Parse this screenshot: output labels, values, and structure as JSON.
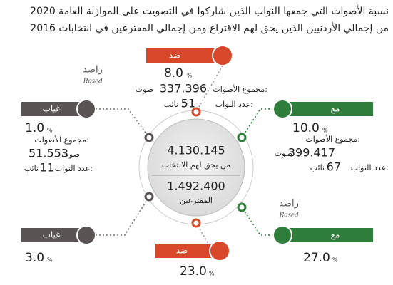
{
  "header": {
    "title_line1": "نسبة الأصوات التي جمعها النواب الذين شاركوا في التصويت على الموازنة العامة 2020",
    "title_line2": "من إجمالي الأردنيين الذين يحق لهم الاقتراع ومن إجمالي المقترعين في انتخابات 2016"
  },
  "logos": [
    {
      "name": "راصد",
      "latin": "Rased"
    },
    {
      "name": "راصد",
      "latin": "Rased"
    }
  ],
  "center": {
    "eligible_value": "4.130.145",
    "eligible_label": "من يحق لهم الانتخاب",
    "voters_value": "1.492.400",
    "voters_label": "المقترعين"
  },
  "eligible_based": {
    "against": {
      "label": "ضد",
      "percent": "8.0",
      "percent_unit": "%",
      "votes_label": "مجموع الأصوات:",
      "votes": "337.396",
      "votes_unit": "صوت",
      "mps_label": "عدد النواب:",
      "mps": "51",
      "mps_unit": "نائب"
    },
    "absent": {
      "label": "غياب",
      "percent": "1.0",
      "percent_unit": "%",
      "votes_label": "مجموع الأصوات:",
      "votes": "51.553",
      "votes_unit": "صوت",
      "mps_label": "عدد النواب:",
      "mps": "11",
      "mps_unit": "نائب"
    },
    "for": {
      "label": "مع",
      "percent": "10.0",
      "percent_unit": "%",
      "votes_label": "مجموع الأصوات:",
      "votes": "399.417",
      "votes_unit": "صوت",
      "mps_label": "عدد النواب:",
      "mps": "67",
      "mps_unit": "نائب"
    }
  },
  "voters_based": {
    "absent": {
      "label": "غياب",
      "percent": "3.0",
      "percent_unit": "%"
    },
    "against": {
      "label": "ضد",
      "percent": "23.0",
      "percent_unit": "%"
    },
    "for": {
      "label": "مع",
      "percent": "27.0",
      "percent_unit": "%"
    }
  }
}
